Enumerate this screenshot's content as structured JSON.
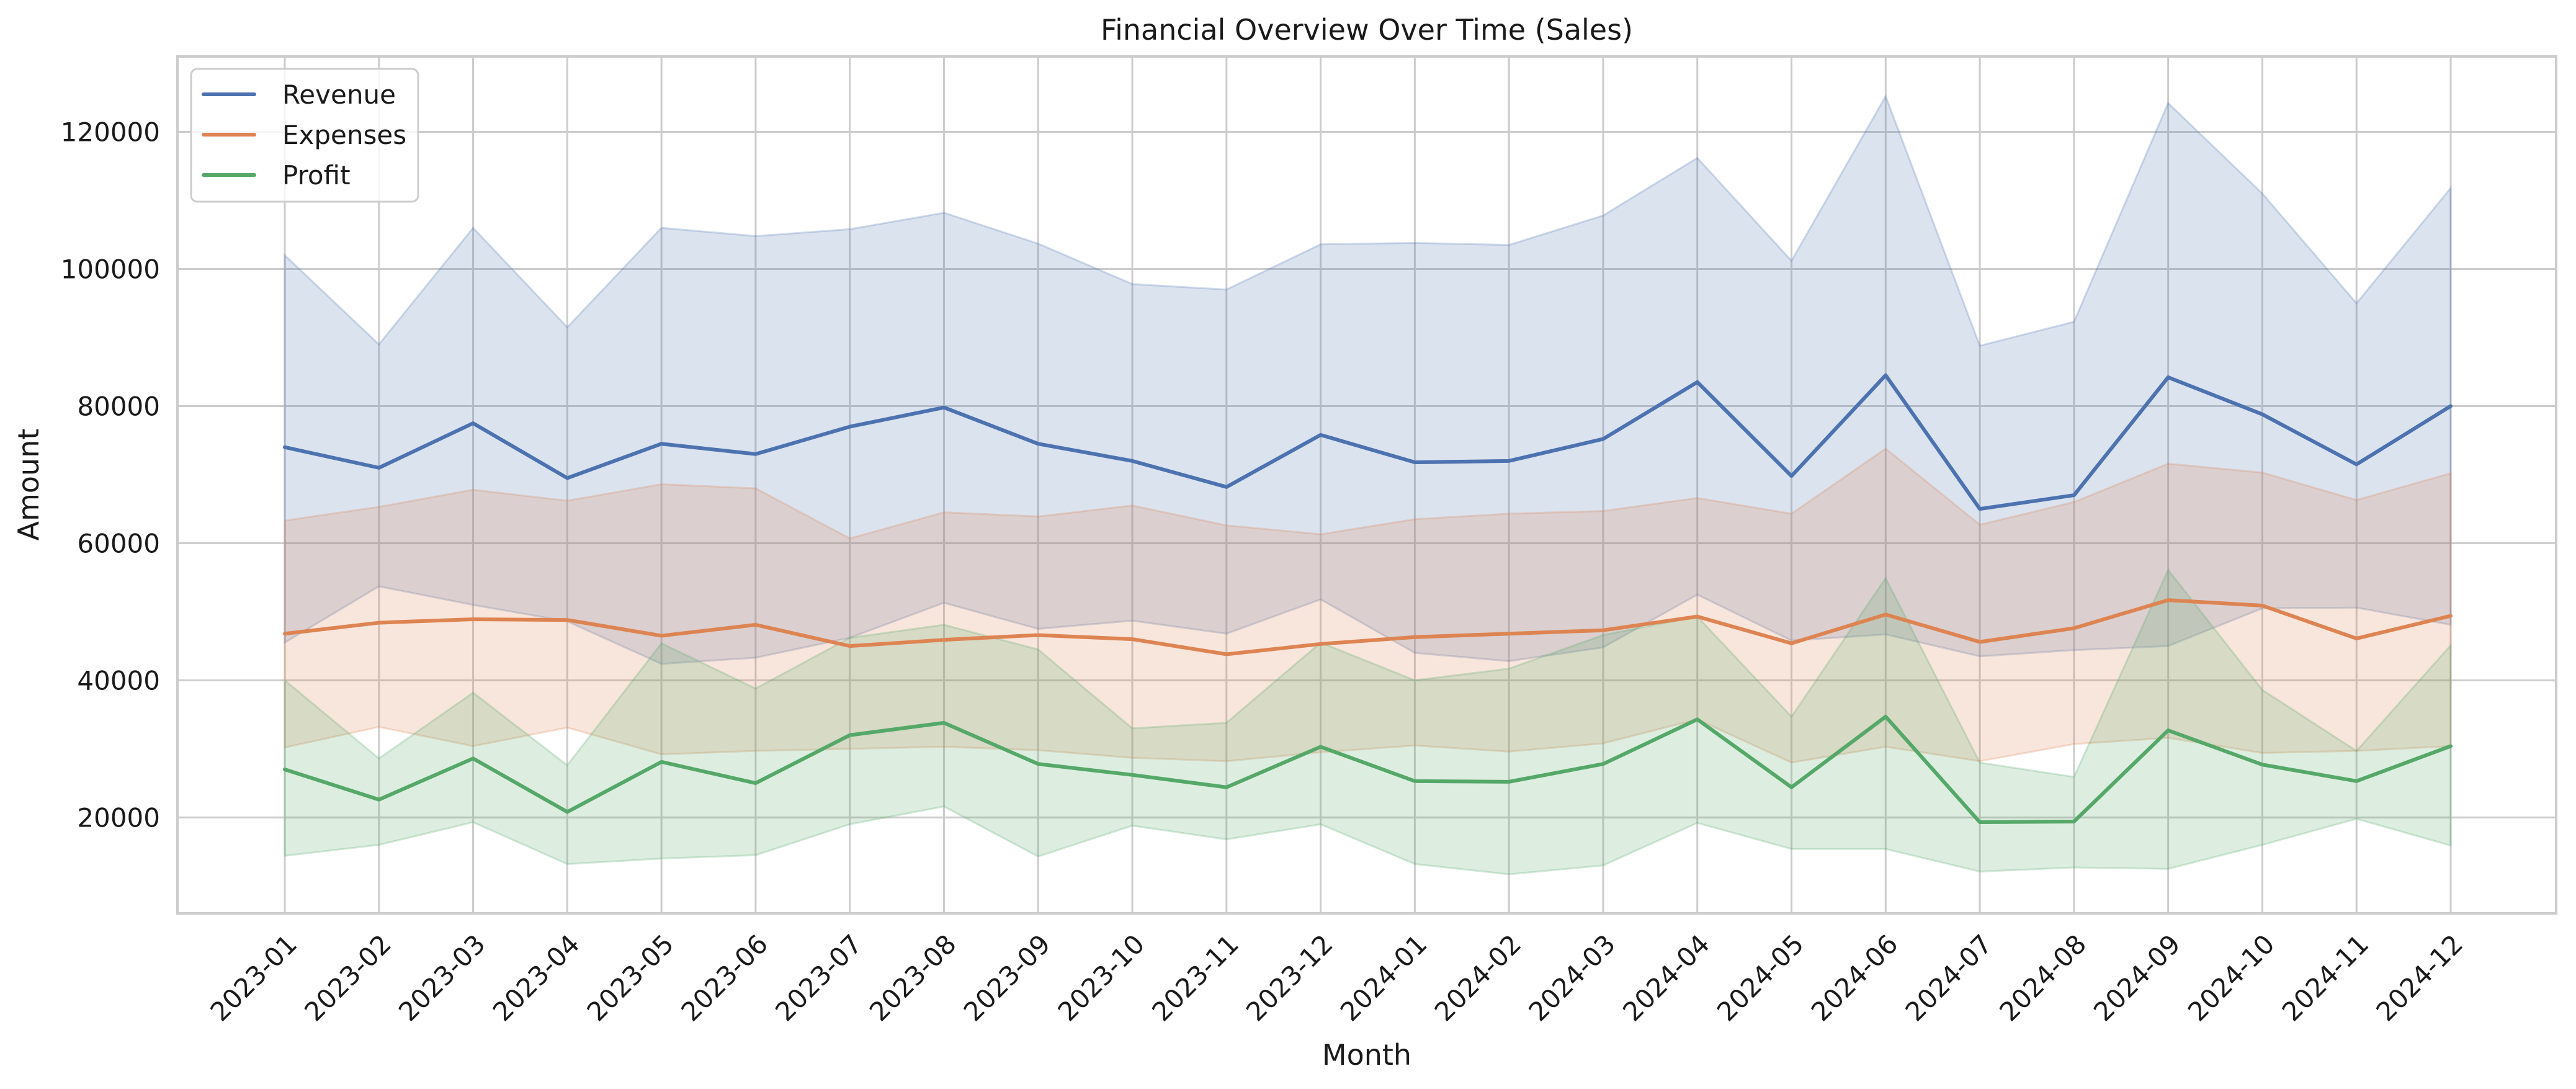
{
  "chart_data": {
    "type": "line",
    "title": "Financial Overview Over Time (Sales)",
    "xlabel": "Month",
    "ylabel": "Amount",
    "x": [
      "2023-01",
      "2023-02",
      "2023-03",
      "2023-04",
      "2023-05",
      "2023-06",
      "2023-07",
      "2023-08",
      "2023-09",
      "2023-10",
      "2023-11",
      "2023-12",
      "2024-01",
      "2024-02",
      "2024-03",
      "2024-04",
      "2024-05",
      "2024-06",
      "2024-07",
      "2024-08",
      "2024-09",
      "2024-10",
      "2024-11",
      "2024-12"
    ],
    "ylim": [
      6000,
      131000
    ],
    "yticks": [
      20000,
      40000,
      60000,
      80000,
      100000,
      120000
    ],
    "ytick_labels": [
      "20000",
      "40000",
      "60000",
      "80000",
      "100000",
      "120000"
    ],
    "grid": true,
    "legend_position": "top-left",
    "series": [
      {
        "name": "Revenue",
        "color": "#4c72b0",
        "values": [
          74000,
          71000,
          77500,
          69500,
          74500,
          73000,
          77000,
          79800,
          74500,
          72000,
          68200,
          75800,
          71800,
          72000,
          75200,
          83500,
          69800,
          84500,
          65000,
          67000,
          84200,
          78800,
          71500,
          80000
        ],
        "band_upper": [
          102000,
          89000,
          106000,
          91500,
          106000,
          104800,
          105800,
          108200,
          103700,
          97800,
          97000,
          103600,
          103800,
          103500,
          107800,
          116200,
          101200,
          125200,
          88800,
          92300,
          124200,
          111000,
          95000,
          111800
        ],
        "band_lower": [
          45500,
          53700,
          51000,
          48600,
          42400,
          43300,
          46200,
          51300,
          47500,
          48700,
          46800,
          51800,
          44000,
          42800,
          44800,
          52500,
          45800,
          46700,
          43500,
          44400,
          45000,
          50500,
          50600,
          48100
        ]
      },
      {
        "name": "Expenses",
        "color": "#dd8452",
        "values": [
          46800,
          48400,
          48900,
          48800,
          46500,
          48100,
          45000,
          45900,
          46600,
          46000,
          43800,
          45300,
          46300,
          46800,
          47300,
          49300,
          45400,
          49600,
          45600,
          47600,
          51700,
          50900,
          46100,
          49400
        ],
        "band_upper": [
          63300,
          65300,
          67800,
          66200,
          68600,
          68000,
          60700,
          64500,
          63900,
          65500,
          62600,
          61300,
          63500,
          64300,
          64700,
          66600,
          64300,
          73800,
          62700,
          66000,
          71600,
          70300,
          66300,
          70200
        ],
        "band_lower": [
          30200,
          33200,
          30400,
          33100,
          29200,
          29700,
          30000,
          30300,
          29800,
          28700,
          28200,
          29500,
          30500,
          29600,
          30800,
          34300,
          28000,
          30300,
          28200,
          30700,
          31600,
          29400,
          29700,
          30400
        ]
      },
      {
        "name": "Profit",
        "color": "#55a868",
        "values": [
          27000,
          22600,
          28600,
          20800,
          28100,
          25000,
          32000,
          33800,
          27800,
          26200,
          24400,
          30300,
          25300,
          25200,
          27800,
          34300,
          24400,
          34700,
          19300,
          19400,
          32700,
          27700,
          25300,
          30400
        ],
        "band_upper": [
          40000,
          28600,
          38200,
          27600,
          45400,
          38800,
          46200,
          48100,
          44500,
          33000,
          33800,
          45500,
          40000,
          41700,
          46600,
          49300,
          34700,
          54900,
          28000,
          25900,
          56100,
          38600,
          29700,
          45100
        ],
        "band_lower": [
          14400,
          16000,
          19300,
          13200,
          14000,
          14500,
          19000,
          21600,
          14300,
          18800,
          16800,
          19000,
          13200,
          11700,
          13000,
          19200,
          15400,
          15400,
          12100,
          12700,
          12500,
          16000,
          19800,
          15900
        ]
      }
    ]
  }
}
